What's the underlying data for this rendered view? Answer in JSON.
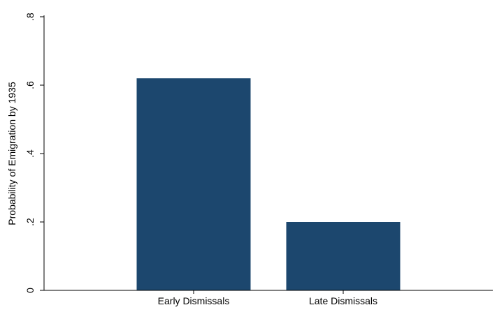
{
  "chart_data": {
    "type": "bar",
    "title": "",
    "xlabel": "",
    "ylabel": "Probability of Emigration by 1935",
    "categories": [
      "Early Dismissals",
      "Late Dismissals"
    ],
    "values": [
      0.62,
      0.2
    ],
    "ylim": [
      0,
      0.8
    ],
    "yticks": [
      0,
      0.2,
      0.4,
      0.6,
      0.8
    ],
    "ytick_labels": [
      "0",
      ".2",
      ".4",
      ".6",
      ".8"
    ],
    "grid": false,
    "legend": "none",
    "bar_color": "#1c476e"
  }
}
